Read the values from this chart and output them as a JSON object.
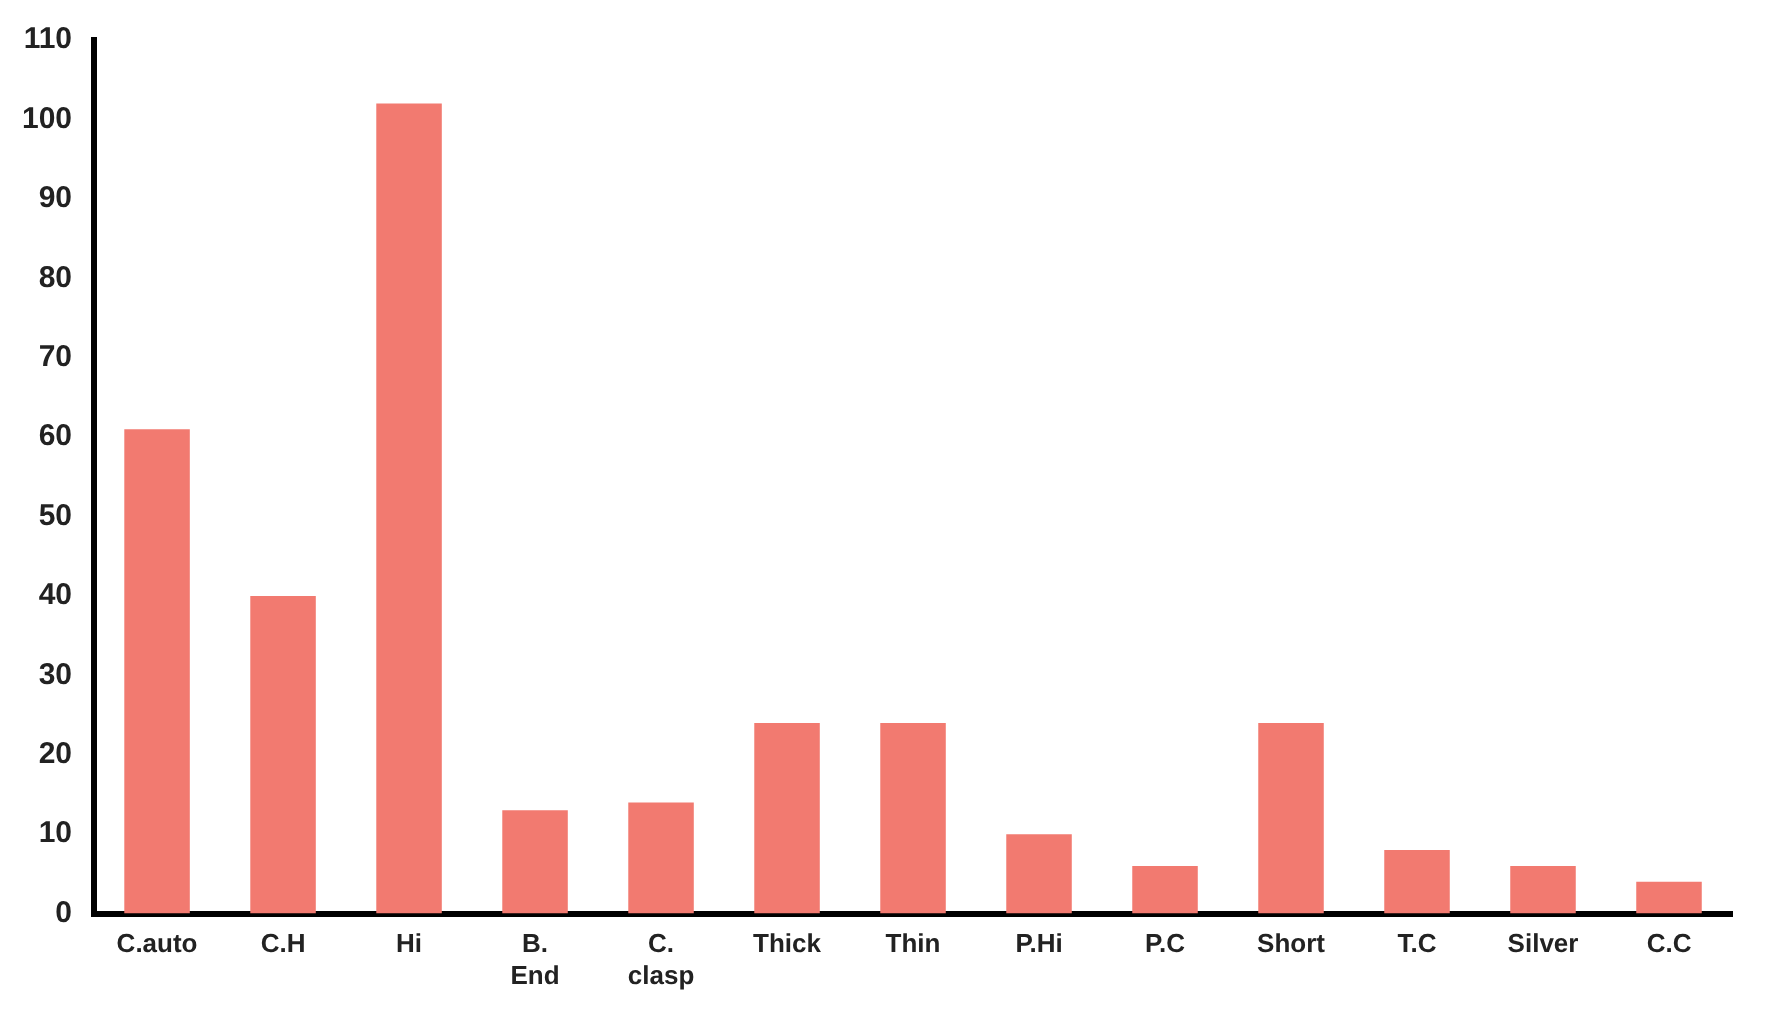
{
  "chart_data": {
    "type": "bar",
    "categories": [
      "C.auto",
      "C.H",
      "Hi",
      "B. End",
      "C. clasp",
      "Thick",
      "Thin",
      "P.Hi",
      "P.C",
      "Short",
      "T.C",
      "Silver",
      "C.C"
    ],
    "values": [
      61,
      40,
      102,
      13,
      14,
      24,
      24,
      10,
      6,
      24,
      8,
      6,
      4
    ],
    "color": "#f27a70",
    "ylim": [
      0,
      110
    ],
    "yticks": [
      0,
      10,
      20,
      30,
      40,
      50,
      60,
      70,
      80,
      90,
      100,
      110
    ],
    "grid": false
  }
}
